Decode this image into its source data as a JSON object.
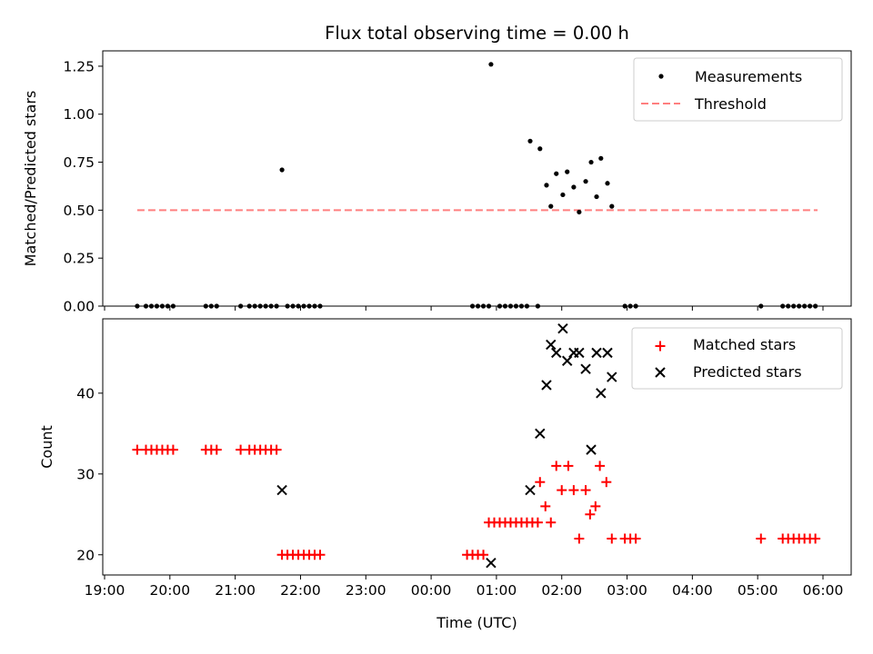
{
  "figure": {
    "title": "Flux total observing time = 0.00 h",
    "xlabel": "Time (UTC)"
  },
  "colors": {
    "measurement": "#000000",
    "threshold": "#ff7f7f",
    "matched": "#ff0000",
    "predicted": "#000000"
  },
  "chart_data": [
    {
      "type": "scatter",
      "ylabel": "Matched/Predicted stars",
      "xlim": [
        "19:00",
        "06:00"
      ],
      "ylim": [
        0,
        1.33
      ],
      "x_ticks": [
        "19:00",
        "20:00",
        "21:00",
        "22:00",
        "23:00",
        "00:00",
        "01:00",
        "02:00",
        "03:00",
        "04:00",
        "05:00",
        "06:00"
      ],
      "y_ticks": [
        "0.00",
        "0.25",
        "0.50",
        "0.75",
        "1.00",
        "1.25"
      ],
      "legend_position": "top-right",
      "legend": [
        "Measurements",
        "Threshold"
      ],
      "threshold": {
        "name": "Threshold",
        "x": [
          "19:30",
          "05:55"
        ],
        "y": 0.5
      },
      "series": [
        {
          "name": "Measurements",
          "points": [
            [
              "19:30",
              0
            ],
            [
              "19:38",
              0
            ],
            [
              "19:43",
              0
            ],
            [
              "19:48",
              0
            ],
            [
              "19:53",
              0
            ],
            [
              "19:58",
              0
            ],
            [
              "20:03",
              0
            ],
            [
              "20:33",
              0
            ],
            [
              "20:38",
              0
            ],
            [
              "20:43",
              0
            ],
            [
              "21:05",
              0
            ],
            [
              "21:13",
              0
            ],
            [
              "21:18",
              0
            ],
            [
              "21:23",
              0
            ],
            [
              "21:28",
              0
            ],
            [
              "21:33",
              0
            ],
            [
              "21:38",
              0
            ],
            [
              "21:43",
              0.71
            ],
            [
              "21:48",
              0
            ],
            [
              "21:53",
              0
            ],
            [
              "21:58",
              0
            ],
            [
              "22:03",
              0
            ],
            [
              "22:08",
              0
            ],
            [
              "22:13",
              0
            ],
            [
              "22:18",
              0
            ],
            [
              "00:38",
              0
            ],
            [
              "00:43",
              0
            ],
            [
              "00:48",
              0
            ],
            [
              "00:53",
              0
            ],
            [
              "00:55",
              1.26
            ],
            [
              "01:03",
              0
            ],
            [
              "01:08",
              0
            ],
            [
              "01:13",
              0
            ],
            [
              "01:18",
              0
            ],
            [
              "01:23",
              0
            ],
            [
              "01:28",
              0
            ],
            [
              "01:31",
              0.86
            ],
            [
              "01:38",
              0
            ],
            [
              "01:40",
              0.82
            ],
            [
              "01:46",
              0.63
            ],
            [
              "01:50",
              0.52
            ],
            [
              "01:55",
              0.69
            ],
            [
              "02:01",
              0.58
            ],
            [
              "02:05",
              0.7
            ],
            [
              "02:11",
              0.62
            ],
            [
              "02:16",
              0.49
            ],
            [
              "02:22",
              0.65
            ],
            [
              "02:27",
              0.75
            ],
            [
              "02:32",
              0.57
            ],
            [
              "02:36",
              0.77
            ],
            [
              "02:42",
              0.64
            ],
            [
              "02:46",
              0.52
            ],
            [
              "02:58",
              0
            ],
            [
              "03:03",
              0
            ],
            [
              "03:08",
              0
            ],
            [
              "05:03",
              0
            ],
            [
              "05:23",
              0
            ],
            [
              "05:28",
              0
            ],
            [
              "05:33",
              0
            ],
            [
              "05:38",
              0
            ],
            [
              "05:43",
              0
            ],
            [
              "05:48",
              0
            ],
            [
              "05:53",
              0
            ]
          ]
        }
      ]
    },
    {
      "type": "scatter",
      "ylabel": "Count",
      "xlim": [
        "19:00",
        "06:00"
      ],
      "ylim": [
        17.5,
        49.2
      ],
      "x_ticks": [
        "19:00",
        "20:00",
        "21:00",
        "22:00",
        "23:00",
        "00:00",
        "01:00",
        "02:00",
        "03:00",
        "04:00",
        "05:00",
        "06:00"
      ],
      "y_ticks": [
        "20",
        "30",
        "40"
      ],
      "legend_position": "top-right",
      "legend": [
        "Matched stars",
        "Predicted stars"
      ],
      "series": [
        {
          "name": "Matched stars",
          "points": [
            [
              "19:30",
              33
            ],
            [
              "19:38",
              33
            ],
            [
              "19:43",
              33
            ],
            [
              "19:48",
              33
            ],
            [
              "19:53",
              33
            ],
            [
              "19:58",
              33
            ],
            [
              "20:03",
              33
            ],
            [
              "20:33",
              33
            ],
            [
              "20:38",
              33
            ],
            [
              "20:43",
              33
            ],
            [
              "21:05",
              33
            ],
            [
              "21:13",
              33
            ],
            [
              "21:18",
              33
            ],
            [
              "21:23",
              33
            ],
            [
              "21:28",
              33
            ],
            [
              "21:33",
              33
            ],
            [
              "21:38",
              33
            ],
            [
              "21:43",
              20
            ],
            [
              "21:48",
              20
            ],
            [
              "21:53",
              20
            ],
            [
              "21:58",
              20
            ],
            [
              "22:03",
              20
            ],
            [
              "22:08",
              20
            ],
            [
              "22:13",
              20
            ],
            [
              "22:18",
              20
            ],
            [
              "00:33",
              20
            ],
            [
              "00:38",
              20
            ],
            [
              "00:43",
              20
            ],
            [
              "00:48",
              20
            ],
            [
              "00:53",
              24
            ],
            [
              "00:58",
              24
            ],
            [
              "01:03",
              24
            ],
            [
              "01:08",
              24
            ],
            [
              "01:13",
              24
            ],
            [
              "01:18",
              24
            ],
            [
              "01:23",
              24
            ],
            [
              "01:28",
              24
            ],
            [
              "01:33",
              24
            ],
            [
              "01:38",
              24
            ],
            [
              "01:40",
              29
            ],
            [
              "01:45",
              26
            ],
            [
              "01:50",
              24
            ],
            [
              "01:55",
              31
            ],
            [
              "02:00",
              28
            ],
            [
              "02:06",
              31
            ],
            [
              "02:11",
              28
            ],
            [
              "02:16",
              22
            ],
            [
              "02:22",
              28
            ],
            [
              "02:26",
              25
            ],
            [
              "02:31",
              26
            ],
            [
              "02:35",
              31
            ],
            [
              "02:41",
              29
            ],
            [
              "02:46",
              22
            ],
            [
              "02:58",
              22
            ],
            [
              "03:03",
              22
            ],
            [
              "03:08",
              22
            ],
            [
              "05:03",
              22
            ],
            [
              "05:23",
              22
            ],
            [
              "05:28",
              22
            ],
            [
              "05:33",
              22
            ],
            [
              "05:38",
              22
            ],
            [
              "05:43",
              22
            ],
            [
              "05:48",
              22
            ],
            [
              "05:53",
              22
            ]
          ]
        },
        {
          "name": "Predicted stars",
          "points": [
            [
              "21:43",
              28
            ],
            [
              "00:55",
              19
            ],
            [
              "01:31",
              28
            ],
            [
              "01:40",
              35
            ],
            [
              "01:46",
              41
            ],
            [
              "01:50",
              46
            ],
            [
              "01:55",
              45
            ],
            [
              "02:01",
              48
            ],
            [
              "02:05",
              44
            ],
            [
              "02:11",
              45
            ],
            [
              "02:16",
              45
            ],
            [
              "02:22",
              43
            ],
            [
              "02:27",
              33
            ],
            [
              "02:32",
              45
            ],
            [
              "02:36",
              40
            ],
            [
              "02:42",
              45
            ],
            [
              "02:46",
              42
            ]
          ]
        }
      ]
    }
  ]
}
